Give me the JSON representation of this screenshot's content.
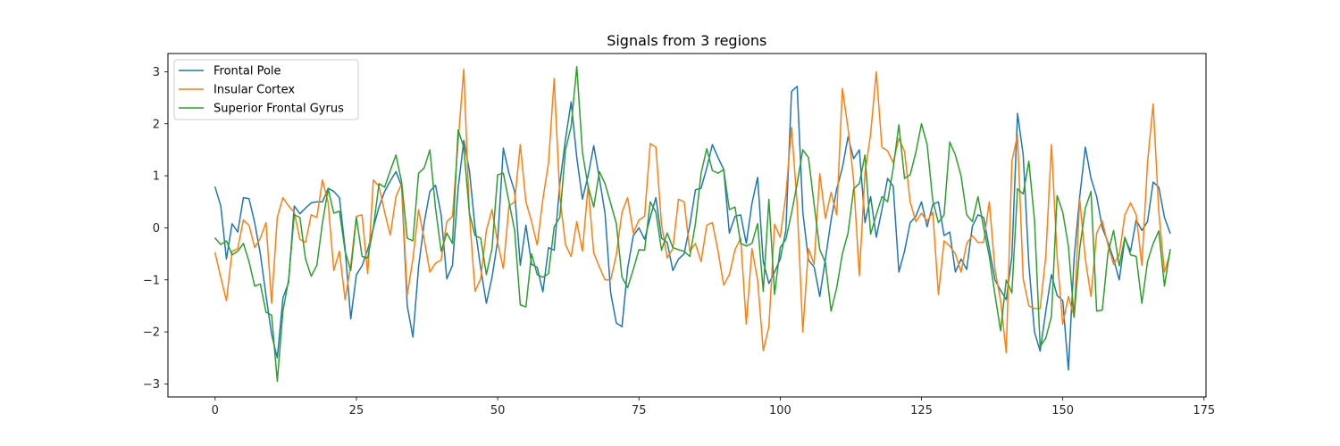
{
  "chart_data": {
    "type": "line",
    "title": "Signals from 3 regions",
    "xlabel": "",
    "ylabel": "",
    "xlim": [
      -8.35,
      175.35
    ],
    "ylim": [
      -3.25,
      3.35
    ],
    "xticks": [
      0,
      25,
      50,
      75,
      100,
      125,
      150,
      175
    ],
    "yticks": [
      -3,
      -2,
      -1,
      0,
      1,
      2,
      3
    ],
    "grid": false,
    "legend_position": "top-left",
    "series": [
      {
        "name": "Frontal Pole",
        "color": "#1f77b4",
        "values": [
          0.78,
          0.42,
          -0.6,
          0.08,
          -0.08,
          0.58,
          0.56,
          0.1,
          -0.5,
          -1.3,
          -2.05,
          -2.5,
          -1.35,
          -1.05,
          0.42,
          0.27,
          0.38,
          0.48,
          0.5,
          0.5,
          0.76,
          0.7,
          0.58,
          -0.4,
          -1.75,
          -0.9,
          -0.73,
          -0.42,
          0.0,
          0.4,
          0.7,
          0.9,
          1.08,
          0.8,
          -1.5,
          -2.1,
          -0.75,
          0.1,
          0.7,
          0.82,
          0.25,
          -0.98,
          -0.72,
          0.75,
          1.68,
          1.1,
          0.0,
          -0.78,
          -1.45,
          -0.95,
          -0.25,
          1.53,
          1.05,
          0.7,
          -0.72,
          0.05,
          -0.7,
          -0.76,
          -1.23,
          -0.38,
          -0.43,
          0.85,
          1.7,
          2.42,
          1.35,
          0.55,
          1.0,
          1.58,
          0.95,
          0.28,
          -1.25,
          -1.83,
          -1.9,
          -0.78,
          -0.15,
          0.0,
          -0.22,
          0.2,
          0.58,
          -0.2,
          -0.28,
          -0.82,
          -0.6,
          -0.5,
          0.05,
          0.73,
          0.76,
          1.15,
          1.6,
          1.35,
          1.12,
          -0.1,
          0.22,
          0.25,
          -0.3,
          0.47,
          0.97,
          -0.65,
          -1.07,
          -0.85,
          -0.6,
          -0.05,
          2.62,
          2.72,
          0.3,
          -0.62,
          -0.75,
          -1.32,
          -0.6,
          0.15,
          0.75,
          1.15,
          1.75,
          1.33,
          1.5,
          0.1,
          0.6,
          -0.18,
          0.35,
          0.95,
          0.8,
          -0.85,
          -0.45,
          0.1,
          0.22,
          0.5,
          0.02,
          0.45,
          0.5,
          -0.15,
          -0.08,
          -0.85,
          -0.6,
          -0.8,
          0.03,
          0.25,
          0.2,
          -0.4,
          -1.0,
          -1.2,
          -1.38,
          -0.55,
          2.2,
          1.4,
          -0.7,
          -2.0,
          -2.37,
          -1.6,
          -0.9,
          -1.3,
          -1.4,
          -2.73,
          -0.6,
          0.6,
          1.55,
          0.95,
          0.6,
          0.0,
          -0.28,
          -0.6,
          -1.0,
          -0.2,
          -0.45,
          0.15,
          -0.05,
          0.12,
          0.88,
          0.78,
          0.2,
          -0.1
        ]
      },
      {
        "name": "Insular Cortex",
        "color": "#ff7f0e",
        "values": [
          -0.48,
          -0.95,
          -1.4,
          -0.45,
          -0.4,
          0.15,
          0.05,
          -0.38,
          -0.2,
          0.1,
          -1.45,
          0.2,
          0.58,
          0.42,
          0.3,
          -0.22,
          -0.28,
          0.25,
          0.2,
          0.92,
          0.48,
          -0.82,
          -0.45,
          -1.38,
          -0.72,
          0.22,
          0.25,
          -0.88,
          0.92,
          0.8,
          0.3,
          -0.14,
          0.6,
          0.85,
          -1.28,
          -0.6,
          0.35,
          -0.22,
          -0.85,
          -0.68,
          -0.62,
          0.12,
          0.22,
          1.65,
          3.05,
          0.25,
          -1.22,
          -0.98,
          -0.05,
          0.35,
          -0.28,
          -0.78,
          0.42,
          0.5,
          1.6,
          0.5,
          0.12,
          -0.33,
          0.55,
          1.25,
          2.87,
          0.6,
          -0.32,
          -0.55,
          0.12,
          -0.45,
          0.8,
          -0.48,
          -0.75,
          -1.0,
          -1.0,
          -0.52,
          0.3,
          0.58,
          -0.1,
          0.15,
          0.22,
          1.62,
          1.55,
          0.06,
          -0.58,
          -0.4,
          0.55,
          0.5,
          -0.45,
          -0.3,
          -0.65,
          0.05,
          0.1,
          -0.45,
          -1.1,
          -0.9,
          -0.42,
          -0.2,
          -1.85,
          -0.4,
          -1.0,
          -2.36,
          -1.9,
          0.07,
          -0.18,
          0.63,
          1.93,
          0.45,
          -2.0,
          -0.4,
          -0.7,
          1.04,
          0.18,
          0.68,
          0.25,
          2.68,
          1.92,
          0.9,
          -0.92,
          1.05,
          1.8,
          3.0,
          1.55,
          1.48,
          1.25,
          1.72,
          1.47,
          0.5,
          0.12,
          0.28,
          0.13,
          0.3,
          -1.28,
          -0.25,
          -0.35,
          -0.5,
          -0.85,
          -0.3,
          -0.15,
          -0.28,
          -0.28,
          0.5,
          -0.8,
          -1.4,
          -2.4,
          1.28,
          1.78,
          -0.98,
          -1.5,
          -1.55,
          -1.55,
          -0.55,
          1.6,
          -0.55,
          -1.85,
          -1.32,
          -1.7,
          0.55,
          -0.6,
          -1.32,
          -0.1,
          0.13,
          -0.33,
          -0.7,
          -0.52,
          0.25,
          0.48,
          0.25,
          -0.72,
          1.25,
          2.38,
          0.3,
          -0.85,
          -0.48
        ]
      },
      {
        "name": "Superior Frontal Gyrus",
        "color": "#2ca02c",
        "values": [
          -0.2,
          -0.32,
          -0.25,
          -0.52,
          -0.45,
          -0.3,
          -0.65,
          -1.12,
          -1.08,
          -1.62,
          -1.68,
          -2.95,
          -1.6,
          -1.0,
          0.25,
          0.2,
          -0.6,
          -0.93,
          -0.72,
          0.1,
          0.75,
          0.28,
          0.32,
          -0.45,
          -0.82,
          0.2,
          -0.55,
          -0.58,
          0.0,
          0.85,
          0.78,
          1.1,
          1.4,
          0.88,
          -0.2,
          -0.25,
          1.05,
          1.15,
          1.5,
          0.38,
          -0.45,
          -0.1,
          -0.3,
          1.88,
          1.55,
          0.28,
          -0.15,
          -0.2,
          -0.9,
          -0.4,
          1.02,
          1.05,
          0.5,
          -0.05,
          -1.48,
          -1.52,
          -0.5,
          -0.9,
          -0.95,
          -0.88,
          0.02,
          0.2,
          1.5,
          1.95,
          3.1,
          1.45,
          0.8,
          0.4,
          1.08,
          0.85,
          0.47,
          0.08,
          -0.95,
          -1.15,
          -0.8,
          -0.42,
          -0.43,
          0.5,
          0.3,
          -0.43,
          -0.1,
          -0.38,
          -0.42,
          -0.45,
          -0.55,
          0.08,
          1.05,
          1.52,
          1.1,
          1.05,
          1.12,
          0.35,
          0.4,
          -0.3,
          -0.35,
          -0.3,
          0.08,
          -1.22,
          0.55,
          -1.28,
          -0.38,
          -0.22,
          0.28,
          0.85,
          1.5,
          1.35,
          0.45,
          -0.42,
          -0.67,
          -1.6,
          -1.15,
          -0.5,
          -0.1,
          0.75,
          0.85,
          1.4,
          -0.12,
          0.25,
          0.6,
          0.5,
          1.15,
          1.98,
          0.95,
          1.02,
          1.45,
          2.0,
          1.6,
          0.52,
          0.1,
          0.25,
          1.65,
          1.4,
          1.0,
          0.25,
          0.12,
          0.6,
          0.0,
          -0.55,
          -1.28,
          -1.98,
          -1.0,
          -1.25,
          0.75,
          0.65,
          1.28,
          0.15,
          -2.28,
          -2.12,
          -1.7,
          0.62,
          0.3,
          -0.35,
          -1.72,
          -0.4,
          0.38,
          0.7,
          -1.6,
          -1.58,
          -0.48,
          -0.05,
          -0.73,
          -0.18,
          -0.52,
          -0.55,
          -1.45,
          -0.65,
          -0.3,
          -0.06,
          -1.12,
          -0.42
        ]
      }
    ]
  }
}
